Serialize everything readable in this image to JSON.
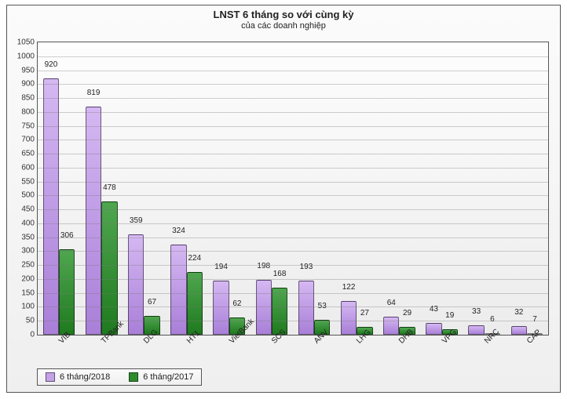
{
  "chart": {
    "type": "bar",
    "title": "LNST 6 tháng so với cùng kỳ",
    "subtitle": "của các doanh nghiệp",
    "title_fontsize": 13,
    "subtitle_fontsize": 11,
    "background_gradient_top": "#fbfbfb",
    "background_gradient_bottom": "#efefef",
    "plot_border_color": "#555555",
    "grid_color": "rgba(120,120,120,0.35)",
    "bar_border_color": "rgba(0,0,0,0.5)",
    "label_fontsize": 10,
    "ylim": [
      0,
      1050
    ],
    "ytick_step": 50,
    "categories": [
      "VIB",
      "TPBank",
      "DLG",
      "HT1",
      "VietBank",
      "SCS",
      "ANV",
      "LHG",
      "DHB",
      "VPG",
      "NRC",
      "CAP"
    ],
    "xlabel_rotation": -45,
    "bar_group_gap_ratio": 0.25,
    "series": [
      {
        "name": "6 tháng/2018",
        "color_top": "#d5b8f2",
        "color_bottom": "#a97fd8",
        "legend_color": "#c3a2e8",
        "values": [
          920,
          819,
          359,
          324,
          194,
          198,
          193,
          122,
          64,
          43,
          33,
          32
        ]
      },
      {
        "name": "6 tháng/2017",
        "color_top": "#4fa64f",
        "color_bottom": "#1f7a1f",
        "legend_color": "#2e8b2e",
        "values": [
          306,
          478,
          67,
          224,
          62,
          168,
          53,
          27,
          29,
          19,
          6,
          7
        ]
      }
    ],
    "legend_position": "bottom-left"
  }
}
